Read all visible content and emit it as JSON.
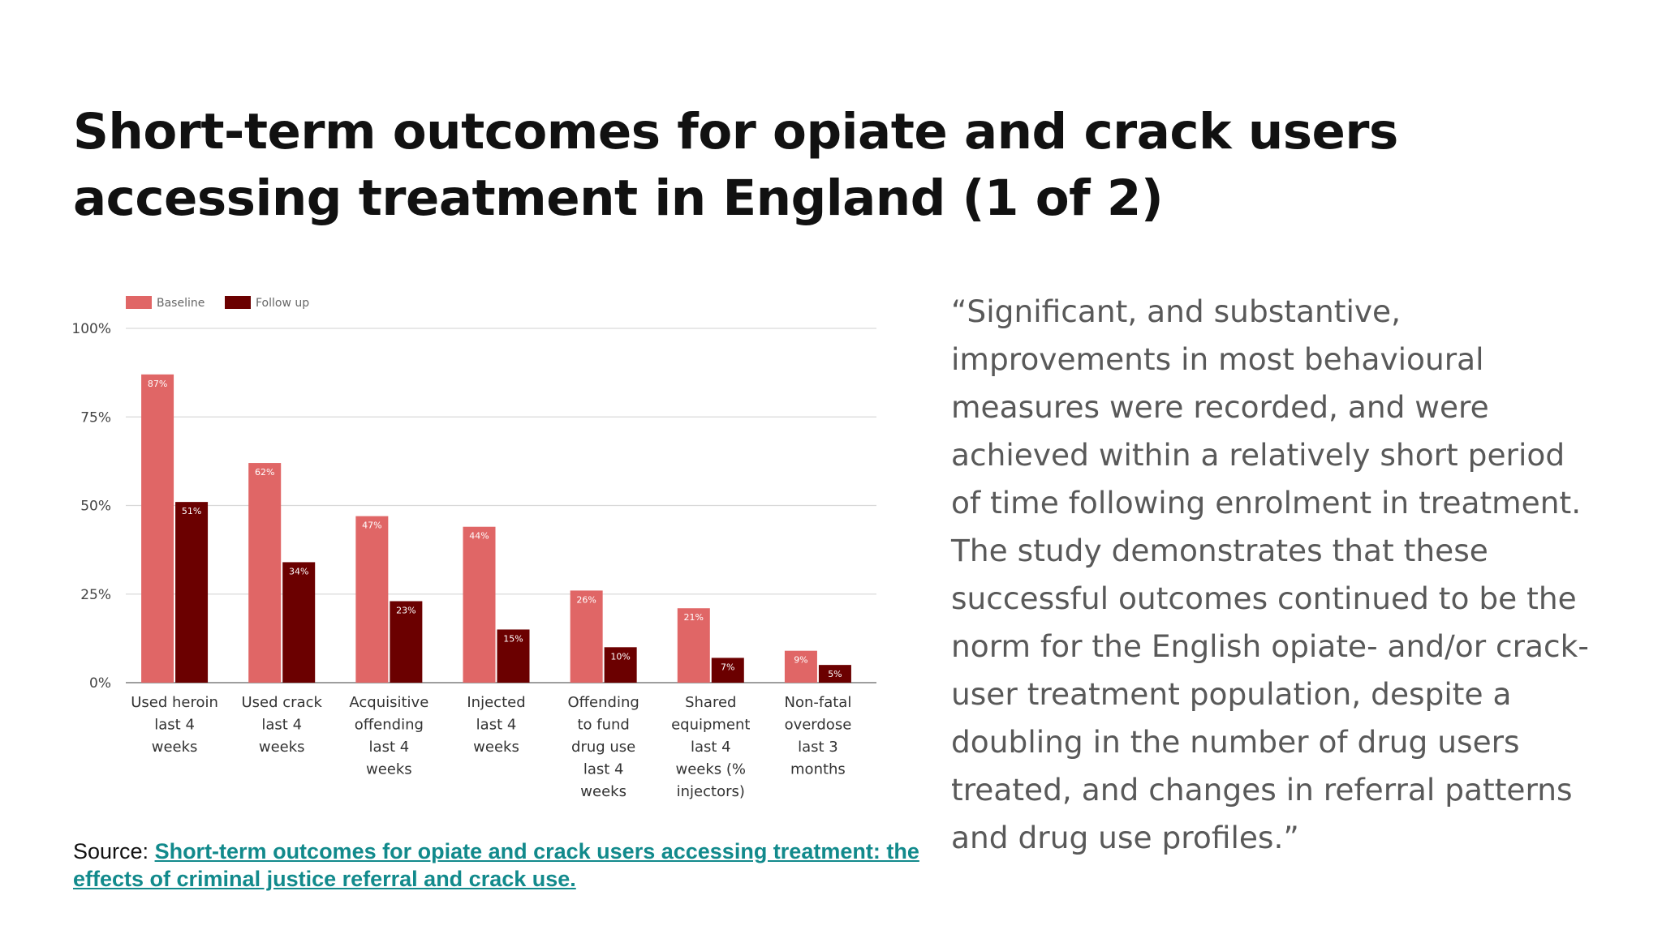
{
  "slide": {
    "title_line1": "Short-term outcomes for opiate and crack users",
    "title_line2": "accessing treatment in England (1 of 2)",
    "quote": "“Significant, and substantive, improvements in most behavioural measures were recorded, and were achieved within a relatively short period of time following enrolment in treatment. The study demonstrates that these successful outcomes continued to be the norm for the English opiate- and/or crack-user treatment population, despite a doubling in the number of drug users treated, and changes in referral patterns and drug use profiles.”",
    "source_prefix": "Source: ",
    "source_link": "Short-term outcomes for opiate and crack users accessing treatment: the effects of criminal justice referral and crack use."
  },
  "colors": {
    "baseline": "#e06666",
    "follow_up": "#6b0000",
    "link": "#128a8c"
  },
  "chart_data": {
    "type": "bar",
    "title": "",
    "xlabel": "",
    "ylabel": "",
    "ylim": [
      0,
      100
    ],
    "yticks": [
      "0%",
      "25%",
      "50%",
      "75%",
      "100%"
    ],
    "grid": true,
    "legend_position": "top-left",
    "categories": [
      [
        "Used heroin",
        "last 4",
        "weeks"
      ],
      [
        "Used crack",
        "last 4",
        "weeks"
      ],
      [
        "Acquisitive",
        "offending",
        "last 4",
        "weeks"
      ],
      [
        "Injected",
        "last 4",
        "weeks"
      ],
      [
        "Offending",
        "to fund",
        "drug use",
        "last 4",
        "weeks"
      ],
      [
        "Shared",
        "equipment",
        "last 4",
        "weeks (%",
        "injectors)"
      ],
      [
        "Non-fatal",
        "overdose",
        "last 3",
        "months"
      ]
    ],
    "series": [
      {
        "name": "Baseline",
        "values": [
          87,
          62,
          47,
          44,
          26,
          21,
          9
        ],
        "labels": [
          "87%",
          "62%",
          "47%",
          "44%",
          "26%",
          "21%",
          "9%"
        ]
      },
      {
        "name": "Follow up",
        "values": [
          51,
          34,
          23,
          15,
          10,
          7,
          5
        ],
        "labels": [
          "51%",
          "34%",
          "23%",
          "15%",
          "10%",
          "7%",
          "5%"
        ]
      }
    ]
  }
}
